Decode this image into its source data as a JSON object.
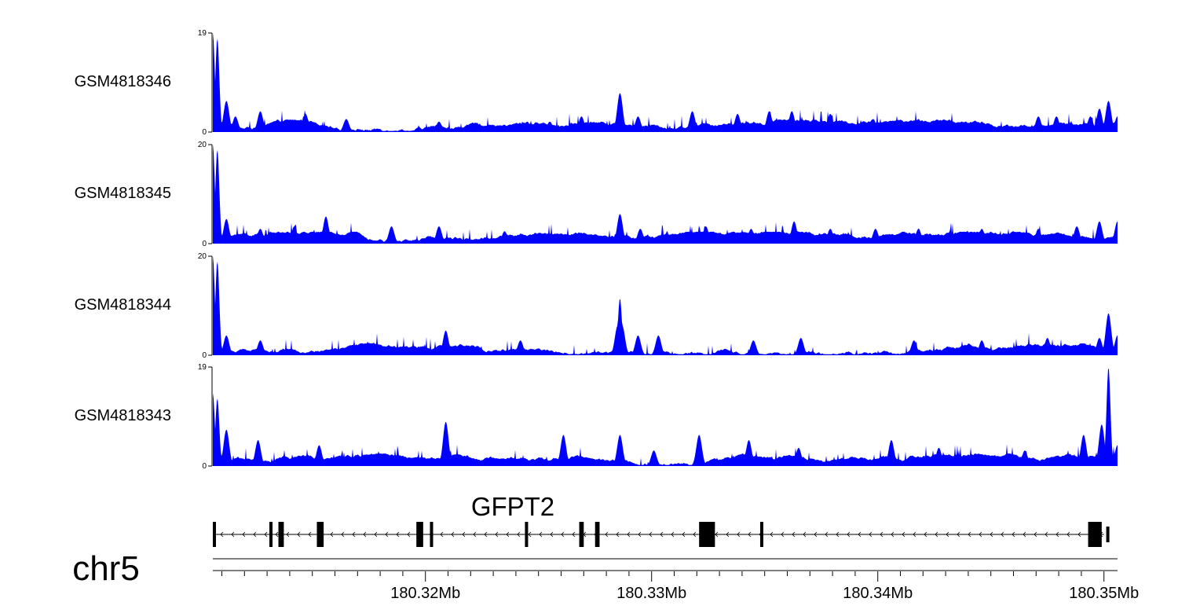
{
  "chart_data": {
    "type": "area",
    "chromosome": "chr5",
    "x_range_mb": [
      180.3106,
      180.3506
    ],
    "x_unit": "Mb",
    "x_ticks": [
      {
        "value": 180.32,
        "label": "180.32Mb"
      },
      {
        "value": 180.33,
        "label": "180.33Mb"
      },
      {
        "value": 180.34,
        "label": "180.34Mb"
      },
      {
        "value": 180.35,
        "label": "180.35Mb"
      }
    ],
    "fill_color": "#0000ff",
    "tracks": [
      {
        "name": "GSM4818346",
        "ymin": 0,
        "ymax": 19,
        "peaks": [
          [
            180.3106,
            19
          ],
          [
            180.3108,
            18
          ],
          [
            180.3112,
            6
          ],
          [
            180.3116,
            3
          ],
          [
            180.3127,
            4
          ],
          [
            180.3147,
            3.5
          ],
          [
            180.3165,
            2.5
          ],
          [
            180.3206,
            2
          ],
          [
            180.3245,
            2
          ],
          [
            180.3255,
            2
          ],
          [
            180.3269,
            3
          ],
          [
            180.3286,
            7.5
          ],
          [
            180.3294,
            3
          ],
          [
            180.3318,
            4
          ],
          [
            180.3338,
            3.5
          ],
          [
            180.3352,
            4
          ],
          [
            180.3362,
            4
          ],
          [
            180.3379,
            3.5
          ],
          [
            180.3398,
            2.5
          ],
          [
            180.3418,
            2.5
          ],
          [
            180.3446,
            2
          ],
          [
            180.3471,
            3
          ],
          [
            180.3479,
            3
          ],
          [
            180.3494,
            3
          ],
          [
            180.3498,
            4.5
          ],
          [
            180.3502,
            6
          ],
          [
            180.3506,
            3
          ]
        ]
      },
      {
        "name": "GSM4818345",
        "ymin": 0,
        "ymax": 20,
        "peaks": [
          [
            180.3106,
            20
          ],
          [
            180.3108,
            19
          ],
          [
            180.3112,
            5
          ],
          [
            180.3127,
            3
          ],
          [
            180.3142,
            3.5
          ],
          [
            180.3156,
            5.5
          ],
          [
            180.3185,
            3.5
          ],
          [
            180.3206,
            3.5
          ],
          [
            180.3235,
            2.5
          ],
          [
            180.3286,
            6
          ],
          [
            180.3295,
            3
          ],
          [
            180.3324,
            3.5
          ],
          [
            180.3344,
            3
          ],
          [
            180.3363,
            4.5
          ],
          [
            180.3379,
            3
          ],
          [
            180.3399,
            3
          ],
          [
            180.3418,
            3
          ],
          [
            180.3446,
            3
          ],
          [
            180.3471,
            3
          ],
          [
            180.3488,
            3.5
          ],
          [
            180.3498,
            4.5
          ],
          [
            180.3506,
            4.5
          ]
        ]
      },
      {
        "name": "GSM4818344",
        "ymin": 0,
        "ymax": 20,
        "peaks": [
          [
            180.3106,
            20
          ],
          [
            180.3108,
            19
          ],
          [
            180.3112,
            4
          ],
          [
            180.3127,
            3
          ],
          [
            180.3175,
            2.5
          ],
          [
            180.3209,
            5
          ],
          [
            180.3242,
            3
          ],
          [
            180.3285,
            6
          ],
          [
            180.3286,
            11.5
          ],
          [
            180.3287,
            6
          ],
          [
            180.3294,
            4
          ],
          [
            180.3303,
            4
          ],
          [
            180.3345,
            3
          ],
          [
            180.3366,
            3.5
          ],
          [
            180.3416,
            3
          ],
          [
            180.3446,
            3
          ],
          [
            180.3475,
            3.5
          ],
          [
            180.3498,
            3.5
          ],
          [
            180.3502,
            8.5
          ],
          [
            180.3506,
            4
          ]
        ]
      },
      {
        "name": "GSM4818343",
        "ymin": 0,
        "ymax": 19,
        "peaks": [
          [
            180.3106,
            14
          ],
          [
            180.3108,
            13
          ],
          [
            180.3112,
            7
          ],
          [
            180.3126,
            5
          ],
          [
            180.3153,
            4
          ],
          [
            180.3209,
            8.5
          ],
          [
            180.3261,
            6
          ],
          [
            180.3286,
            6
          ],
          [
            180.3301,
            3
          ],
          [
            180.3321,
            6
          ],
          [
            180.3343,
            5
          ],
          [
            180.3365,
            3.5
          ],
          [
            180.3406,
            5
          ],
          [
            180.3427,
            3.5
          ],
          [
            180.3465,
            3
          ],
          [
            180.3491,
            6
          ],
          [
            180.3499,
            8
          ],
          [
            180.3502,
            19
          ],
          [
            180.3506,
            4
          ]
        ]
      }
    ],
    "gene": {
      "name": "GFPT2",
      "strand": "-",
      "span_mb": [
        180.3106,
        180.35
      ],
      "exons": [
        [
          180.3106,
          180.3107,
          "tall"
        ],
        [
          180.3131,
          180.3132,
          "tall"
        ],
        [
          180.3135,
          180.3136,
          "tall"
        ],
        [
          180.3136,
          180.3137,
          "tall"
        ],
        [
          180.3152,
          180.3155,
          "tall"
        ],
        [
          180.3196,
          180.3199,
          "tall"
        ],
        [
          180.3202,
          180.3203,
          "tall"
        ],
        [
          180.3244,
          180.3245,
          "tall"
        ],
        [
          180.3268,
          180.327,
          "tall"
        ],
        [
          180.3275,
          180.3277,
          "tall"
        ],
        [
          180.3321,
          180.3328,
          "tall"
        ],
        [
          180.3348,
          180.3349,
          "tall"
        ],
        [
          180.3493,
          180.3499,
          "tall"
        ],
        [
          180.3501,
          180.3502,
          "short"
        ]
      ]
    }
  }
}
